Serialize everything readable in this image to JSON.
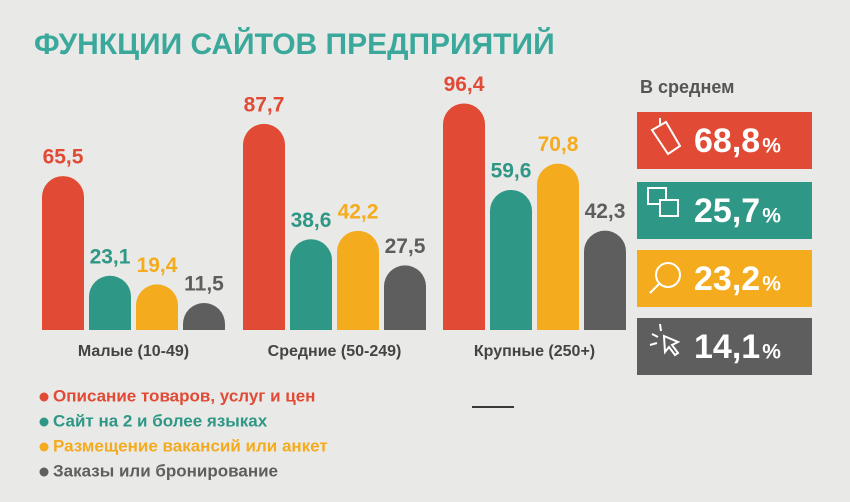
{
  "chart_data": {
    "type": "bar",
    "title": "ФУНКЦИИ САЙТОВ ПРЕДПРИЯТИЙ",
    "categories": [
      "Малые (10-49)",
      "Средние (50-249)",
      "Крупные (250+)"
    ],
    "series": [
      {
        "name": "Описание товаров, услуг и цен",
        "color": "#e14a35",
        "values": [
          65.5,
          87.7,
          96.4
        ],
        "value_labels": [
          "65,5",
          "87,7",
          "96,4"
        ]
      },
      {
        "name": "Сайт на 2 и более языках",
        "color": "#2f9785",
        "values": [
          23.1,
          38.6,
          59.6
        ],
        "value_labels": [
          "23,1",
          "38,6",
          "59,6"
        ]
      },
      {
        "name": "Размещение вакансий или анкет",
        "color": "#f4ab1e",
        "values": [
          19.4,
          42.2,
          70.8
        ],
        "value_labels": [
          "19,4",
          "42,2",
          "70,8"
        ]
      },
      {
        "name": "Заказы или бронирование",
        "color": "#5e5e5e",
        "values": [
          11.5,
          27.5,
          42.3
        ],
        "value_labels": [
          "11,5",
          "27,5",
          "42,3"
        ]
      }
    ],
    "ylim": [
      0,
      100
    ],
    "averages": {
      "title": "В среднем",
      "values": [
        68.8,
        25.7,
        23.2,
        14.1
      ],
      "value_labels": [
        "68,8",
        "25,7",
        "23,2",
        "14,1"
      ],
      "unit": "%"
    }
  }
}
